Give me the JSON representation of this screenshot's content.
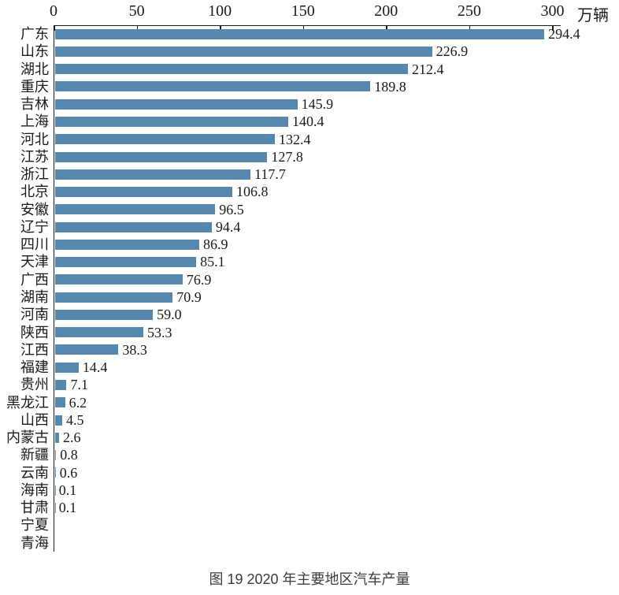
{
  "chart_data": {
    "type": "bar",
    "orientation": "horizontal",
    "title": "图 19  2020 年主要地区汽车产量",
    "unit": "万辆",
    "xlim": [
      0,
      300
    ],
    "x_ticks": [
      0,
      50,
      100,
      150,
      200,
      250,
      300
    ],
    "bar_color": "#5687AE",
    "grid": false,
    "legend": "none",
    "categories": [
      "广东",
      "山东",
      "湖北",
      "重庆",
      "吉林",
      "上海",
      "河北",
      "江苏",
      "浙江",
      "北京",
      "安徽",
      "辽宁",
      "四川",
      "天津",
      "广西",
      "湖南",
      "河南",
      "陕西",
      "江西",
      "福建",
      "贵州",
      "黑龙江",
      "山西",
      "内蒙古",
      "新疆",
      "云南",
      "海南",
      "甘肃",
      "宁夏",
      "青海"
    ],
    "values": [
      294.4,
      226.9,
      212.4,
      189.8,
      145.9,
      140.4,
      132.4,
      127.8,
      117.7,
      106.8,
      96.5,
      94.4,
      86.9,
      85.1,
      76.9,
      70.9,
      59.0,
      53.3,
      38.3,
      14.4,
      7.1,
      6.2,
      4.5,
      2.6,
      0.8,
      0.6,
      0.1,
      0.1,
      null,
      null
    ],
    "value_labels": [
      "294.4",
      "226.9",
      "212.4",
      "189.8",
      "145.9",
      "140.4",
      "132.4",
      "127.8",
      "117.7",
      "106.8",
      "96.5",
      "94.4",
      "86.9",
      "85.1",
      "76.9",
      "70.9",
      "59.0",
      "53.3",
      "38.3",
      "14.4",
      "7.1",
      "6.2",
      "4.5",
      "2.6",
      "0.8",
      "0.6",
      "0.1",
      "0.1",
      "",
      ""
    ]
  }
}
